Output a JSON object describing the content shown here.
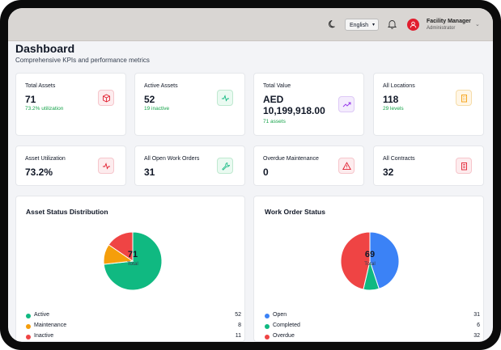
{
  "header": {
    "language": "English",
    "user_name": "Facility Manager",
    "user_role": "Administrator"
  },
  "page": {
    "title": "Dashboard",
    "subtitle": "Comprehensive KPIs and performance metrics"
  },
  "kpis": [
    {
      "label": "Total Assets",
      "value": "71",
      "sub": "73.2% utilization",
      "icon": "cube-icon"
    },
    {
      "label": "Active Assets",
      "value": "52",
      "sub": "19 inactive",
      "icon": "activity-icon"
    },
    {
      "label": "Total Value",
      "value_line1": "AED",
      "value_line2": "10,199,918.00",
      "sub": "71 assets",
      "icon": "trending-up-icon"
    },
    {
      "label": "All Locations",
      "value": "118",
      "sub": "29 levels",
      "icon": "building-icon"
    },
    {
      "label": "Asset Utilization",
      "value": "73.2%",
      "icon": "pulse-icon"
    },
    {
      "label": "All Open Work Orders",
      "value": "31",
      "icon": "wrench-icon"
    },
    {
      "label": "Overdue Maintenance",
      "value": "0",
      "icon": "warning-icon"
    },
    {
      "label": "All Contracts",
      "value": "32",
      "icon": "contract-icon"
    }
  ],
  "colors": {
    "accent_red": "#e11d2e",
    "active": "#10b981",
    "maintenance": "#f59e0b",
    "inactive": "#ef4444",
    "open": "#3b82f6",
    "completed": "#10b981",
    "overdue": "#ef4444",
    "sub_green": "#16a34a"
  },
  "chart_data": [
    {
      "type": "pie",
      "title": "Asset Status Distribution",
      "center_value": "71",
      "center_label": "Total",
      "categories": [
        "Active",
        "Maintenance",
        "Inactive"
      ],
      "values": [
        52,
        8,
        11
      ],
      "colors": [
        "#10b981",
        "#f59e0b",
        "#ef4444"
      ],
      "legend": "bottom"
    },
    {
      "type": "pie",
      "title": "Work Order Status",
      "center_value": "69",
      "center_label": "Total",
      "categories": [
        "Open",
        "Completed",
        "Overdue"
      ],
      "values": [
        31,
        6,
        32
      ],
      "colors": [
        "#3b82f6",
        "#10b981",
        "#ef4444"
      ],
      "legend": "bottom"
    }
  ]
}
